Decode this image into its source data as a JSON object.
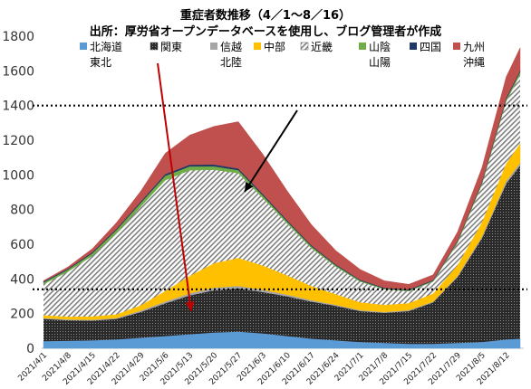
{
  "chart_data": {
    "type": "area",
    "title": "重症者数推移（4／1～8／16）",
    "subtitle": "出所：厚労省オープンデータベースを使用し、ブログ管理者が作成",
    "ylim": [
      0,
      1800
    ],
    "yticks": [
      0,
      200,
      400,
      600,
      800,
      1000,
      1200,
      1400,
      1600,
      1800
    ],
    "x_tick_labels": [
      "2021/4/1",
      "2021/4/8",
      "2021/4/15",
      "2021/4/22",
      "2021/4/29",
      "2021/5/6",
      "2021/5/13",
      "2021/5/20",
      "2021/5/27",
      "2021/6/3",
      "2021/6/10",
      "2021/6/17",
      "2021/6/24",
      "2021/7/1",
      "2021/7/8",
      "2021/7/15",
      "2021/7/22",
      "2021/7/29",
      "2021/8/5",
      "2021/8/12"
    ],
    "reference_lines": [
      1400,
      340
    ],
    "legend_position": "top",
    "x": [
      "2021/4/1",
      "2021/4/8",
      "2021/4/15",
      "2021/4/22",
      "2021/4/29",
      "2021/5/6",
      "2021/5/13",
      "2021/5/20",
      "2021/5/27",
      "2021/6/3",
      "2021/6/10",
      "2021/6/17",
      "2021/6/24",
      "2021/7/1",
      "2021/7/8",
      "2021/7/15",
      "2021/7/22",
      "2021/7/29",
      "2021/8/5",
      "2021/8/12",
      "2021/8/16"
    ],
    "series": [
      {
        "name": "北海道東北",
        "color": "#5b9bd5",
        "values": [
          40,
          42,
          45,
          50,
          60,
          70,
          80,
          90,
          95,
          85,
          70,
          55,
          45,
          35,
          30,
          25,
          25,
          30,
          35,
          50,
          55
        ]
      },
      {
        "name": "関東",
        "color": "#404040",
        "pattern": "dots",
        "values": [
          130,
          120,
          115,
          120,
          150,
          190,
          225,
          245,
          250,
          240,
          230,
          215,
          200,
          180,
          175,
          190,
          240,
          380,
          600,
          900,
          1000
        ]
      },
      {
        "name": "信越北陸",
        "color": "#a6a6a6",
        "values": [
          5,
          5,
          5,
          5,
          8,
          10,
          12,
          15,
          15,
          12,
          10,
          8,
          6,
          5,
          5,
          5,
          5,
          8,
          10,
          15,
          15
        ]
      },
      {
        "name": "中部",
        "color": "#ffc000",
        "values": [
          15,
          15,
          18,
          20,
          30,
          60,
          100,
          140,
          160,
          140,
          110,
          80,
          60,
          45,
          40,
          40,
          45,
          60,
          80,
          100,
          110
        ]
      },
      {
        "name": "近畿",
        "color": "#bfbfbf",
        "pattern": "diag",
        "values": [
          180,
          260,
          350,
          470,
          570,
          640,
          610,
          540,
          490,
          390,
          300,
          220,
          160,
          120,
          90,
          70,
          70,
          130,
          220,
          360,
          400
        ]
      },
      {
        "name": "山陰山陽",
        "color": "#70ad47",
        "values": [
          10,
          12,
          15,
          18,
          22,
          25,
          22,
          20,
          18,
          15,
          12,
          10,
          8,
          6,
          5,
          5,
          5,
          8,
          10,
          12,
          15
        ]
      },
      {
        "name": "四国",
        "color": "#1f3864",
        "values": [
          5,
          5,
          6,
          7,
          8,
          10,
          10,
          10,
          9,
          8,
          7,
          6,
          5,
          4,
          4,
          4,
          4,
          5,
          6,
          8,
          8
        ]
      },
      {
        "name": "九州沖縄",
        "color": "#c0504d",
        "values": [
          5,
          10,
          20,
          35,
          60,
          120,
          170,
          220,
          270,
          230,
          170,
          120,
          80,
          60,
          40,
          30,
          30,
          50,
          80,
          120,
          130
        ]
      }
    ],
    "legend_labels": [
      [
        "北海道",
        "東北"
      ],
      [
        "関東"
      ],
      [
        "信越",
        "北陸"
      ],
      [
        "中部"
      ],
      [
        "近畿"
      ],
      [
        "山陰",
        "山陽"
      ],
      [
        "四国"
      ],
      [
        "九州",
        "沖縄"
      ]
    ],
    "annotations": [
      {
        "type": "arrow",
        "color": "#c00000",
        "target": "関東"
      },
      {
        "type": "arrow",
        "color": "#000000",
        "target": "近畿"
      }
    ]
  }
}
